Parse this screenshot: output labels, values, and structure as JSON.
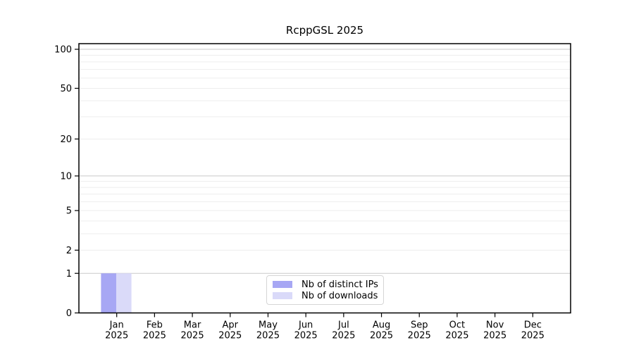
{
  "chart_data": {
    "type": "bar",
    "title": "RcppGSL 2025",
    "categories": [
      "Jan",
      "Feb",
      "Mar",
      "Apr",
      "May",
      "Jun",
      "Jul",
      "Aug",
      "Sep",
      "Oct",
      "Nov",
      "Dec"
    ],
    "x_tick_second_line": "2025",
    "series": [
      {
        "name": "Nb of distinct IPs",
        "color": "#a7a7f4",
        "values": [
          1,
          0,
          0,
          0,
          0,
          0,
          0,
          0,
          0,
          0,
          0,
          0
        ]
      },
      {
        "name": "Nb of downloads",
        "color": "#dadaf9",
        "values": [
          1,
          0,
          0,
          0,
          0,
          0,
          0,
          0,
          0,
          0,
          0,
          0
        ]
      }
    ],
    "y_scale": "log1p",
    "ylim": [
      0,
      100
    ],
    "y_ticks": [
      0,
      1,
      2,
      5,
      10,
      20,
      50,
      100
    ],
    "gridlines": {
      "major": [
        1,
        10,
        100
      ],
      "minor": [
        2,
        3,
        4,
        5,
        6,
        7,
        8,
        9,
        20,
        30,
        40,
        50,
        60,
        70,
        80,
        90
      ],
      "major_color": "#c9c9c9",
      "minor_color": "#ededed"
    },
    "legend_position": "lower center inside",
    "xlabel": "",
    "ylabel": ""
  },
  "legend": {
    "items": [
      {
        "label": "Nb of distinct IPs",
        "color": "#a7a7f4"
      },
      {
        "label": "Nb of downloads",
        "color": "#dadaf9"
      }
    ]
  },
  "colors": {
    "background": "#ffffff",
    "axis": "#000000",
    "text": "#000000"
  }
}
